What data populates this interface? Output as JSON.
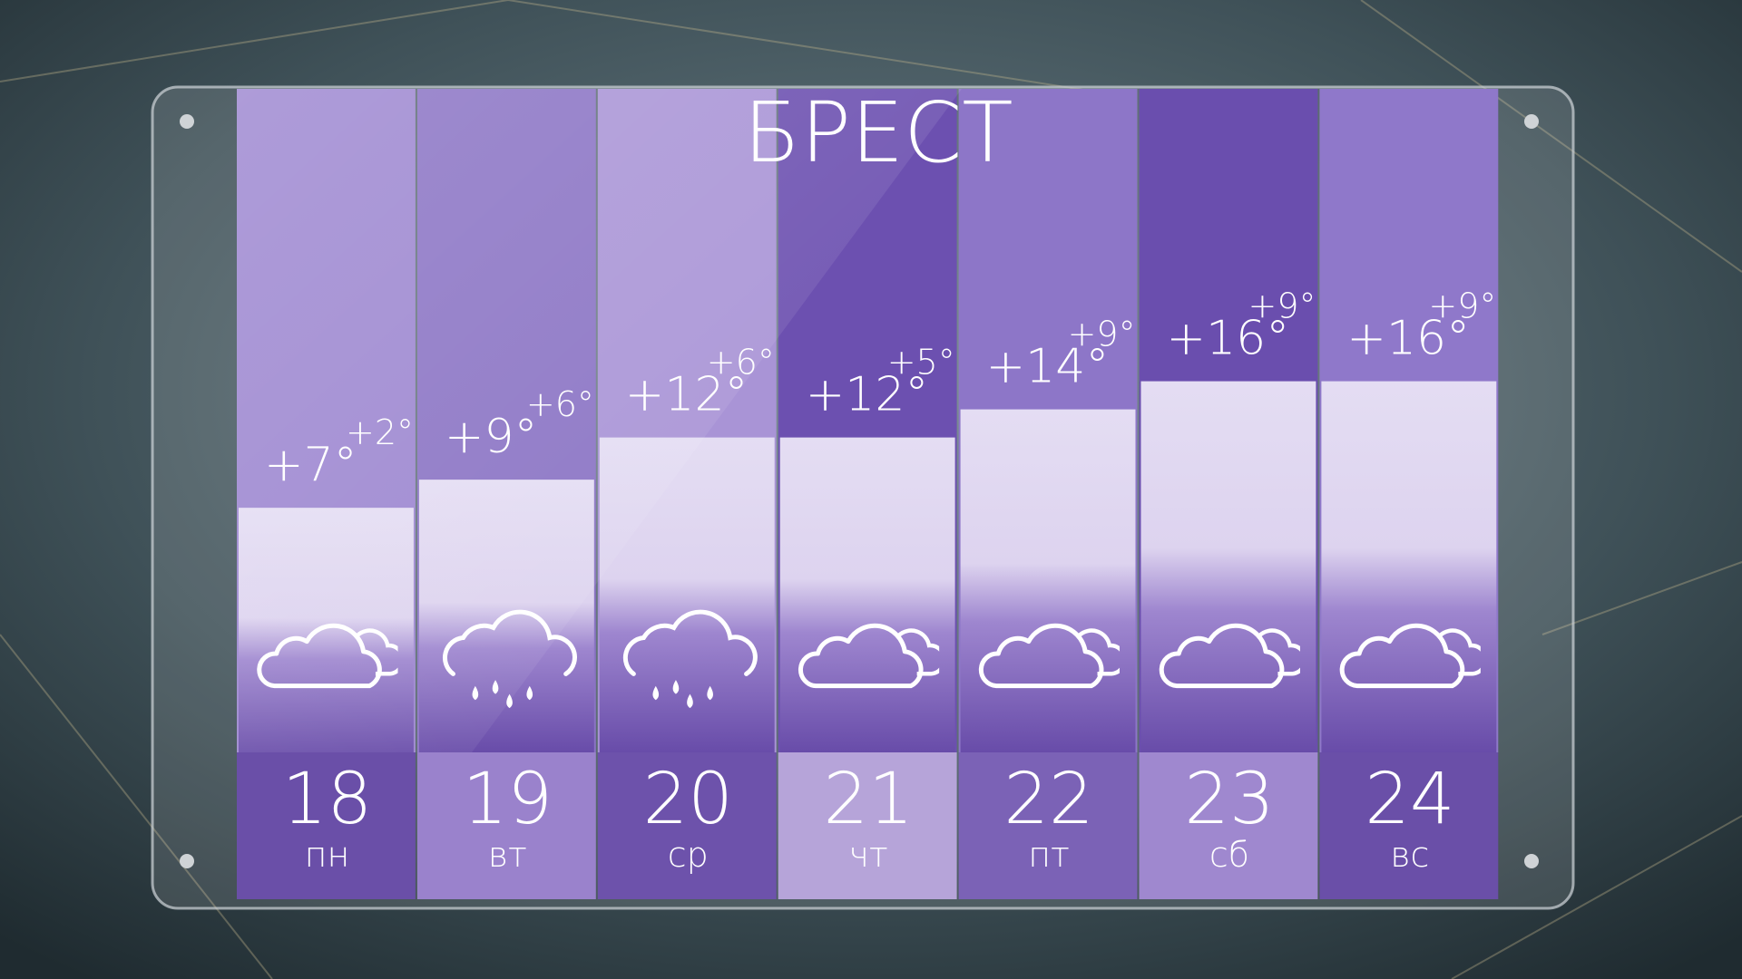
{
  "chart_data": {
    "type": "bar",
    "title": "БРЕСТ",
    "categories": [
      "18",
      "19",
      "20",
      "21",
      "22",
      "23",
      "24"
    ],
    "weekdays": [
      "пн",
      "вт",
      "ср",
      "чт",
      "пт",
      "сб",
      "вс"
    ],
    "values": [
      7,
      9,
      12,
      12,
      14,
      16,
      16
    ],
    "value_labels": [
      "+7°",
      "+9°",
      "+12°",
      "+12°",
      "+14°",
      "+16°",
      "+16°"
    ],
    "night_values": [
      2,
      6,
      6,
      5,
      9,
      9,
      9
    ],
    "night_value_labels": [
      "+2°",
      "+6°",
      "+6°",
      "+5°",
      "+9°",
      "+9°",
      "+9°"
    ],
    "icons": [
      "cloudy",
      "rain",
      "rain",
      "cloudy",
      "cloudy",
      "cloudy",
      "cloudy"
    ],
    "ylim": [
      -10.4,
      36.8
    ]
  }
}
